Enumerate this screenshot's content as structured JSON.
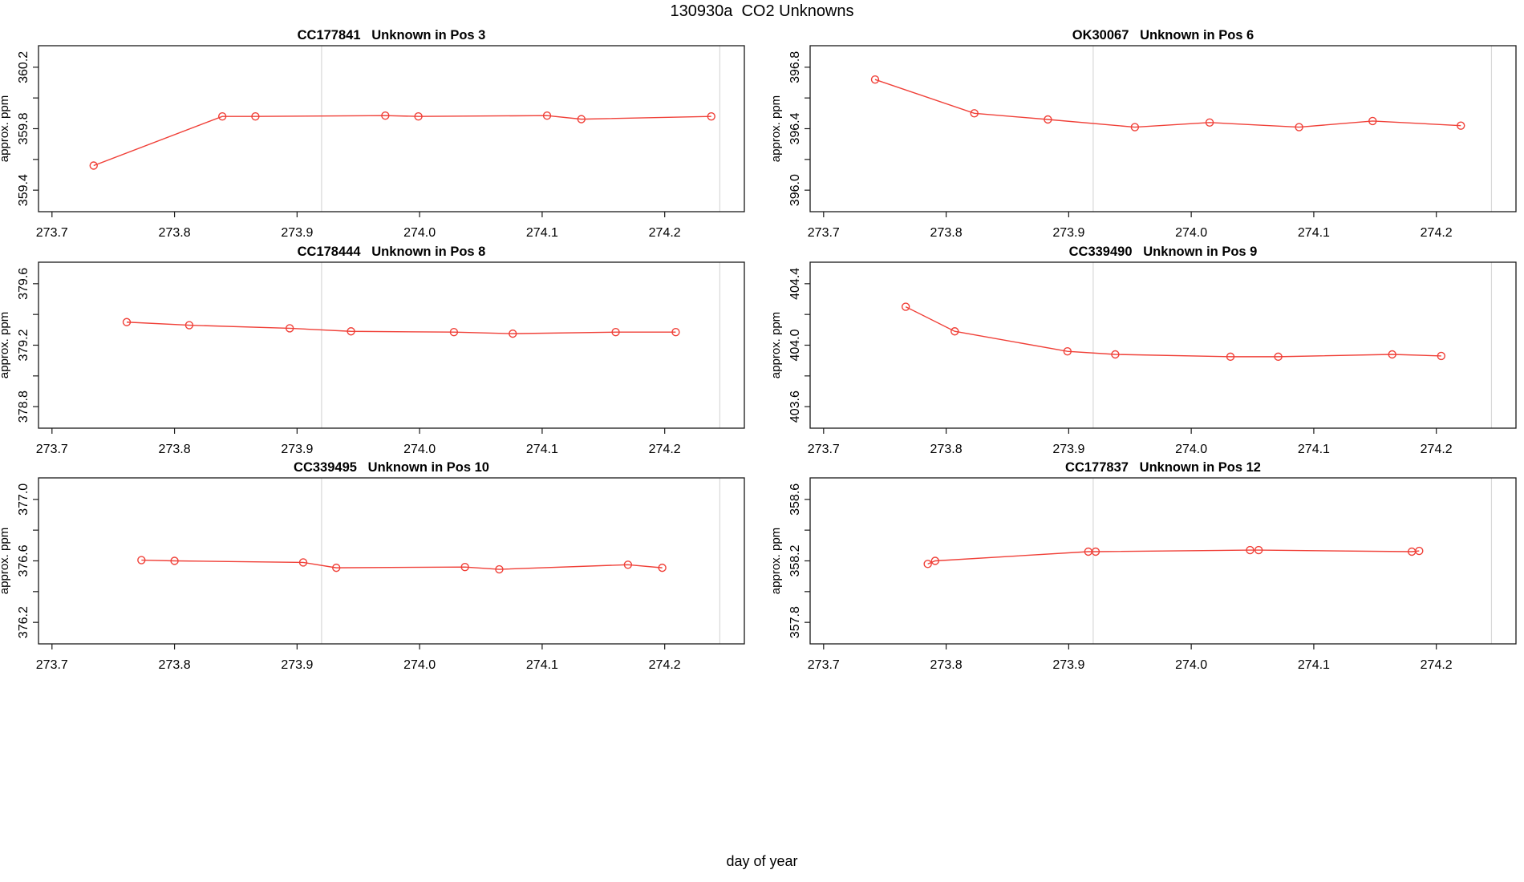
{
  "figure": {
    "title": "130930a  CO2 Unknowns",
    "xlabel": "day of year"
  },
  "chart_data": {
    "type": "line",
    "title": "130930a  CO2 Unknowns",
    "xlabel": "day of year",
    "ylabel": "approx. ppm",
    "legend": "none",
    "grid": "two vertical gray reference lines per panel",
    "series_color": "#f04038",
    "gridline_color": "#d8d8d8",
    "box_color": "#1a1a1a",
    "marker": "open-circle",
    "x_axis": {
      "lim": [
        273.689,
        274.265
      ],
      "ticks": [
        273.7,
        273.8,
        273.9,
        274.0,
        274.1,
        274.2
      ],
      "tick_labels": [
        "273.7",
        "273.8",
        "273.9",
        "274.0",
        "274.1",
        "274.2"
      ]
    },
    "gridlines_x": [
      273.92,
      274.245
    ],
    "panels": [
      {
        "title": "CC177841   Unknown in Pos 3",
        "sample_id": "CC177841",
        "position": "Pos 3",
        "ylim": [
          359.26,
          360.34
        ],
        "yticks": [
          359.4,
          359.6,
          359.8,
          360.0,
          360.2
        ],
        "ytick_labels": [
          "359.4",
          "",
          "359.8",
          "",
          "360.2"
        ],
        "x": [
          273.734,
          273.839,
          273.866,
          273.972,
          273.999,
          274.104,
          274.132,
          274.238
        ],
        "y": [
          359.56,
          359.88,
          359.88,
          359.885,
          359.88,
          359.885,
          359.862,
          359.88
        ]
      },
      {
        "title": "OK30067   Unknown in Pos 6",
        "sample_id": "OK30067",
        "position": "Pos 6",
        "ylim": [
          395.86,
          396.94
        ],
        "yticks": [
          396.0,
          396.2,
          396.4,
          396.6,
          396.8
        ],
        "ytick_labels": [
          "396.0",
          "",
          "396.4",
          "",
          "396.8"
        ],
        "x": [
          273.742,
          273.823,
          273.883,
          273.954,
          274.015,
          274.088,
          274.148,
          274.22
        ],
        "y": [
          396.72,
          396.5,
          396.46,
          396.41,
          396.44,
          396.41,
          396.45,
          396.42
        ]
      },
      {
        "title": "CC178444   Unknown in Pos 8",
        "sample_id": "CC178444",
        "position": "Pos 8",
        "ylim": [
          378.66,
          379.74
        ],
        "yticks": [
          378.8,
          379.0,
          379.2,
          379.4,
          379.6
        ],
        "ytick_labels": [
          "378.8",
          "",
          "379.2",
          "",
          "379.6"
        ],
        "x": [
          273.761,
          273.812,
          273.894,
          273.944,
          274.028,
          274.076,
          274.16,
          274.209
        ],
        "y": [
          379.35,
          379.33,
          379.31,
          379.29,
          379.285,
          379.275,
          379.285,
          379.285
        ]
      },
      {
        "title": "CC339490   Unknown in Pos 9",
        "sample_id": "CC339490",
        "position": "Pos 9",
        "ylim": [
          403.46,
          404.54
        ],
        "yticks": [
          403.6,
          403.8,
          404.0,
          404.2,
          404.4
        ],
        "ytick_labels": [
          "403.6",
          "",
          "404.0",
          "",
          "404.4"
        ],
        "x": [
          273.767,
          273.807,
          273.899,
          273.938,
          274.032,
          274.071,
          274.164,
          274.204
        ],
        "y": [
          404.25,
          404.09,
          403.96,
          403.94,
          403.925,
          403.925,
          403.94,
          403.93
        ]
      },
      {
        "title": "CC339495   Unknown in Pos 10",
        "sample_id": "CC339495",
        "position": "Pos 10",
        "ylim": [
          376.06,
          377.14
        ],
        "yticks": [
          376.2,
          376.4,
          376.6,
          376.8,
          377.0
        ],
        "ytick_labels": [
          "376.2",
          "",
          "376.6",
          "",
          "377.0"
        ],
        "x": [
          273.773,
          273.8,
          273.905,
          273.932,
          274.037,
          274.065,
          274.17,
          274.198
        ],
        "y": [
          376.605,
          376.6,
          376.59,
          376.555,
          376.56,
          376.545,
          376.575,
          376.555
        ]
      },
      {
        "title": "CC177837   Unknown in Pos 12",
        "sample_id": "CC177837",
        "position": "Pos 12",
        "ylim": [
          357.66,
          358.74
        ],
        "yticks": [
          357.8,
          358.0,
          358.2,
          358.4,
          358.6
        ],
        "ytick_labels": [
          "357.8",
          "",
          "358.2",
          "",
          "358.6"
        ],
        "x": [
          273.785,
          273.791,
          273.916,
          273.922,
          274.048,
          274.055,
          274.18,
          274.186
        ],
        "y": [
          358.18,
          358.2,
          358.26,
          358.26,
          358.27,
          358.27,
          358.26,
          358.265
        ]
      }
    ]
  }
}
